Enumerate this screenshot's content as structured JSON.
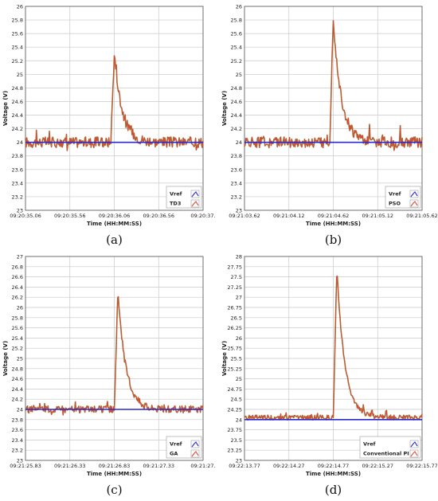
{
  "captions": [
    "(a)",
    "(b)",
    "(c)",
    "(d)"
  ],
  "colors": {
    "vref": "#2a2acf",
    "signal": "#d94a3a",
    "signal_dark": "#8c7a2a",
    "grid": "#c8c8c8",
    "axis": "#555555"
  },
  "chart_data": [
    {
      "type": "line",
      "xlabel": "Time (HH:MM:SS)",
      "ylabel": "Voltage (V)",
      "ylim": [
        23,
        26
      ],
      "yticks": [
        "23",
        "23.2",
        "23.4",
        "23.6",
        "23.8",
        "24",
        "24.2",
        "24.4",
        "24.6",
        "24.8",
        "25",
        "25.2",
        "25.4",
        "25.6",
        "25.8",
        "26"
      ],
      "xticks": [
        "09:20:35.06",
        "09:20:35.56",
        "09:20:36.06",
        "09:20:36.56",
        "09:20:37."
      ],
      "grid": true,
      "legend_position": "bottom-right",
      "series": [
        {
          "name": "Vref",
          "values": [
            24.0,
            24.0
          ]
        },
        {
          "name": "TD3",
          "baseline": 24.0,
          "noise": 0.08,
          "peak": 25.3,
          "peak_x": 0.5
        }
      ]
    },
    {
      "type": "line",
      "xlabel": "Time (HH:MM:SS)",
      "ylabel": "Voltage (V)",
      "ylim": [
        23,
        26
      ],
      "yticks": [
        "23",
        "23.2",
        "23.4",
        "23.6",
        "23.8",
        "24",
        "24.2",
        "24.4",
        "24.6",
        "24.8",
        "25",
        "25.2",
        "25.4",
        "25.6",
        "25.8",
        "26"
      ],
      "xticks": [
        "09:21:03.62",
        "09:21:04.12",
        "09:21:04.62",
        "09:21:05.12",
        "09:21:05.62"
      ],
      "grid": true,
      "legend_position": "bottom-right",
      "series": [
        {
          "name": "Vref",
          "values": [
            24.0,
            24.0
          ]
        },
        {
          "name": "PSO",
          "baseline": 24.0,
          "noise": 0.08,
          "peak": 25.85,
          "peak_x": 0.5
        }
      ]
    },
    {
      "type": "line",
      "xlabel": "Time (HH:MM:SS)",
      "ylabel": "Voltage (V)",
      "ylim": [
        23,
        27
      ],
      "yticks": [
        "23",
        "23.2",
        "23.4",
        "23.6",
        "23.8",
        "24",
        "24.2",
        "24.4",
        "24.6",
        "24.8",
        "25",
        "25.2",
        "25.4",
        "25.6",
        "25.8",
        "26",
        "26.2",
        "26.4",
        "26.6",
        "26.8",
        "27"
      ],
      "xticks": [
        "09:21:25.83",
        "09:21:26.33",
        "09:21:26.83",
        "09:21:27.33",
        "09:21:27."
      ],
      "grid": true,
      "legend_position": "bottom-right",
      "series": [
        {
          "name": "Vref",
          "values": [
            24.0,
            24.0
          ]
        },
        {
          "name": "GA",
          "baseline": 24.0,
          "noise": 0.07,
          "peak": 26.3,
          "peak_x": 0.52
        }
      ]
    },
    {
      "type": "line",
      "xlabel": "Time (HH:MM:SS)",
      "ylabel": "Voltage (V)",
      "ylim": [
        23,
        28
      ],
      "yticks": [
        "23",
        "23.25",
        "23.5",
        "23.75",
        "24",
        "24.25",
        "24.5",
        "24.75",
        "25",
        "25.25",
        "25.5",
        "25.75",
        "26",
        "26.25",
        "26.5",
        "26.75",
        "27",
        "27.25",
        "27.5",
        "27.75",
        "28"
      ],
      "xticks": [
        "09:22:13.77",
        "09:22:14.27",
        "09:22:14.77",
        "09:22:15.27",
        "09:22:15.77"
      ],
      "grid": true,
      "legend_position": "bottom-right",
      "series": [
        {
          "name": "Vref",
          "values": [
            24.0,
            24.0
          ]
        },
        {
          "name": "Conventional PI",
          "baseline": 24.05,
          "noise": 0.06,
          "peak": 27.7,
          "peak_x": 0.52
        }
      ]
    }
  ]
}
